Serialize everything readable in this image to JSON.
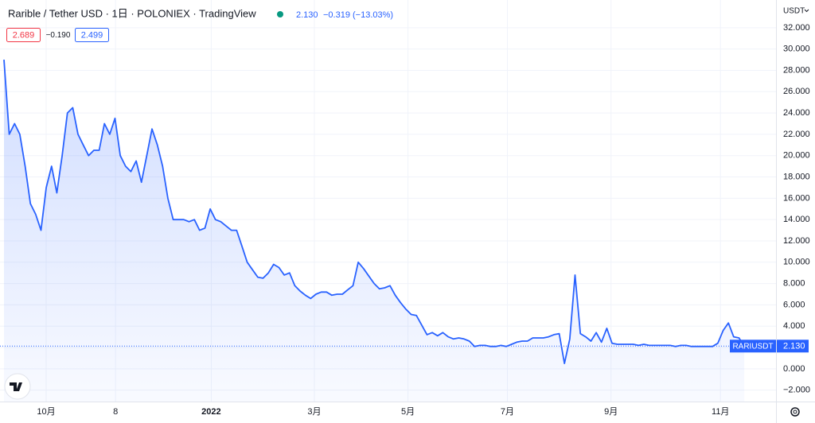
{
  "header": {
    "title": "Rarible / Tether USD · 1日 · POLONIEX · TradingView",
    "last": "2.130",
    "change": "−0.319 (−13.03%)",
    "bid": "2.689",
    "spread": "−0.190",
    "ask": "2.499",
    "currency": "USDT"
  },
  "chart_data": {
    "type": "line",
    "series": [
      {
        "name": "RARIUSDT",
        "color": "#2962ff",
        "values": [
          29,
          22,
          23,
          22,
          19,
          15.5,
          14.5,
          13,
          17,
          19,
          16.5,
          20,
          24,
          24.5,
          22,
          21,
          20,
          20.5,
          20.5,
          23,
          22,
          23.5,
          20,
          19,
          18.5,
          19.5,
          17.5,
          20,
          22.5,
          21,
          19,
          16,
          14,
          14,
          14,
          13.8,
          14,
          13,
          13.2,
          15,
          14,
          13.8,
          13.4,
          13,
          13,
          11.5,
          10,
          9.3,
          8.6,
          8.5,
          9,
          9.8,
          9.5,
          8.8,
          9,
          7.8,
          7.3,
          6.9,
          6.6,
          7,
          7.2,
          7.2,
          6.9,
          7,
          7,
          7.4,
          7.8,
          10,
          9.4,
          8.7,
          8,
          7.5,
          7.6,
          7.8,
          6.9,
          6.2,
          5.6,
          5.1,
          5,
          4.1,
          3.2,
          3.4,
          3.1,
          3.4,
          3,
          2.8,
          2.9,
          2.8,
          2.6,
          2.1,
          2.2,
          2.2,
          2.1,
          2.1,
          2.2,
          2.1,
          2.3,
          2.5,
          2.6,
          2.6,
          2.9,
          2.9,
          2.9,
          3,
          3.2,
          3.3,
          0.5,
          2.8,
          8.8,
          3.3,
          3,
          2.6,
          3.4,
          2.5,
          3.8,
          2.4,
          2.3,
          2.3,
          2.3,
          2.3,
          2.2,
          2.3,
          2.2,
          2.2,
          2.2,
          2.2,
          2.2,
          2.1,
          2.2,
          2.2,
          2.1,
          2.1,
          2.1,
          2.1,
          2.1,
          2.4,
          3.6,
          4.3,
          3,
          2.9,
          2.13
        ],
        "last_label": "2.130"
      }
    ],
    "xlim": [
      -0.75,
      146
    ],
    "xticks": [
      {
        "value": 7.98,
        "label": "10月"
      },
      {
        "value": 21.1,
        "label": "8"
      },
      {
        "value": 39.2,
        "label": "2022"
      },
      {
        "value": 58.7,
        "label": "3月"
      },
      {
        "value": 76.4,
        "label": "5月"
      },
      {
        "value": 95.2,
        "label": "7月"
      },
      {
        "value": 114.8,
        "label": "9月"
      },
      {
        "value": 135.5,
        "label": "11月"
      }
    ],
    "ylim": [
      -3.07,
      34.6
    ],
    "yticks": [
      {
        "value": -2,
        "label": "−2.000"
      },
      {
        "value": 0,
        "label": "0.000"
      },
      {
        "value": 2,
        "label": "2.000"
      },
      {
        "value": 4,
        "label": "4.000"
      },
      {
        "value": 6,
        "label": "6.000"
      },
      {
        "value": 8,
        "label": "8.000"
      },
      {
        "value": 10,
        "label": "10.000"
      },
      {
        "value": 12,
        "label": "12.000"
      },
      {
        "value": 14,
        "label": "14.000"
      },
      {
        "value": 16,
        "label": "16.000"
      },
      {
        "value": 18,
        "label": "18.000"
      },
      {
        "value": 20,
        "label": "20.000"
      },
      {
        "value": 22,
        "label": "22.000"
      },
      {
        "value": 24,
        "label": "24.000"
      },
      {
        "value": 26,
        "label": "26.000"
      },
      {
        "value": 28,
        "label": "28.000"
      },
      {
        "value": 30,
        "label": "30.000"
      },
      {
        "value": 32,
        "label": "32.000"
      }
    ],
    "grid": true
  }
}
